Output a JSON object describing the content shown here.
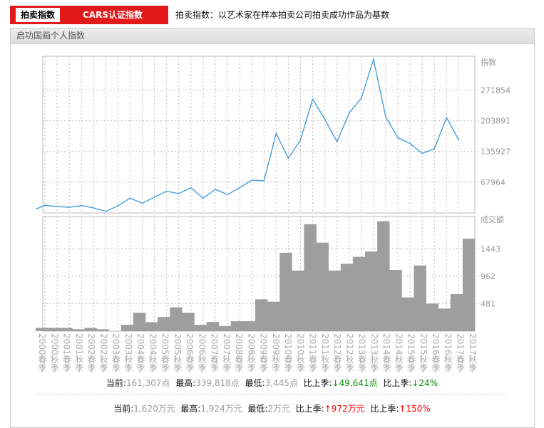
{
  "tabs": [
    {
      "label": "拍卖指数",
      "active": true
    },
    {
      "label": "CARS认证指数",
      "active": false
    }
  ],
  "description": "拍卖指数：以艺术家在样本拍卖公司拍卖成功作品为基数",
  "panel_title": "启功国画个人指数",
  "colors": {
    "brand_red": "#e2191b",
    "line": "#3a98dc",
    "bar": "#9e9e9e",
    "down": "#0a8a0a",
    "up": "#ff0000"
  },
  "chart_data": [
    {
      "type": "line",
      "ylabel": "指数",
      "yticks": [
        67964,
        135927,
        203891,
        271854
      ],
      "ylim": [
        0,
        339818
      ],
      "grid": true,
      "categories": [
        "2000春季",
        "2000秋季",
        "2001春季",
        "2001秋季",
        "2002春季",
        "2002秋季",
        "2003春季",
        "2003秋季",
        "2004春季",
        "2004秋季",
        "2005春季",
        "2005秋季",
        "2006春季",
        "2006秋季",
        "2007春季",
        "2007秋季",
        "2008春季",
        "2008秋季",
        "2009春季",
        "2009秋季",
        "2010春季",
        "2010秋季",
        "2011春季",
        "2011秋季",
        "2012春季",
        "2012秋季",
        "2013春季",
        "2013秋季",
        "2014春季",
        "2014秋季",
        "2015春季",
        "2015秋季",
        "2016春季",
        "2016秋季",
        "2017春季",
        "2017秋季"
      ],
      "values": [
        8900,
        16800,
        14100,
        12500,
        16200,
        11000,
        3445,
        15700,
        32900,
        21400,
        35000,
        48000,
        42800,
        55900,
        32400,
        52200,
        40700,
        55900,
        72500,
        71000,
        175900,
        121000,
        161300,
        252000,
        207000,
        157700,
        221000,
        254000,
        339818,
        212500,
        166500,
        153500,
        131500,
        142000,
        210948,
        161307
      ]
    },
    {
      "type": "bar",
      "ylabel": "成交额",
      "yticks": [
        481,
        962,
        1443
      ],
      "ylim": [
        0,
        1924
      ],
      "grid": true,
      "values": [
        58,
        58,
        58,
        33,
        58,
        33,
        2,
        111,
        322,
        157,
        247,
        417,
        322,
        111,
        161,
        91,
        173,
        173,
        557,
        516,
        1373,
        1060,
        1872,
        1550,
        1060,
        1179,
        1302,
        1394,
        1924,
        1072,
        590,
        1150,
        482,
        396,
        648,
        1620
      ]
    }
  ],
  "stats_index": {
    "current_label": "当前:",
    "current": "161,307点",
    "high_label": "最高:",
    "high": "339,818点",
    "low_label": "最低:",
    "low": "3,445点",
    "chg_label": "比上季:",
    "chg": "49,641点",
    "pct_label": "比上季:",
    "pct": "24%",
    "arrow": "↓"
  },
  "stats_volume": {
    "current_label": "当前:",
    "current": "1,620万元",
    "high_label": "最高:",
    "high": "1,924万元",
    "low_label": "最低:",
    "low": "2万元",
    "chg_label": "比上季:",
    "chg": "972万元",
    "pct_label": "比上季:",
    "pct": "150%",
    "arrow": "↑"
  }
}
